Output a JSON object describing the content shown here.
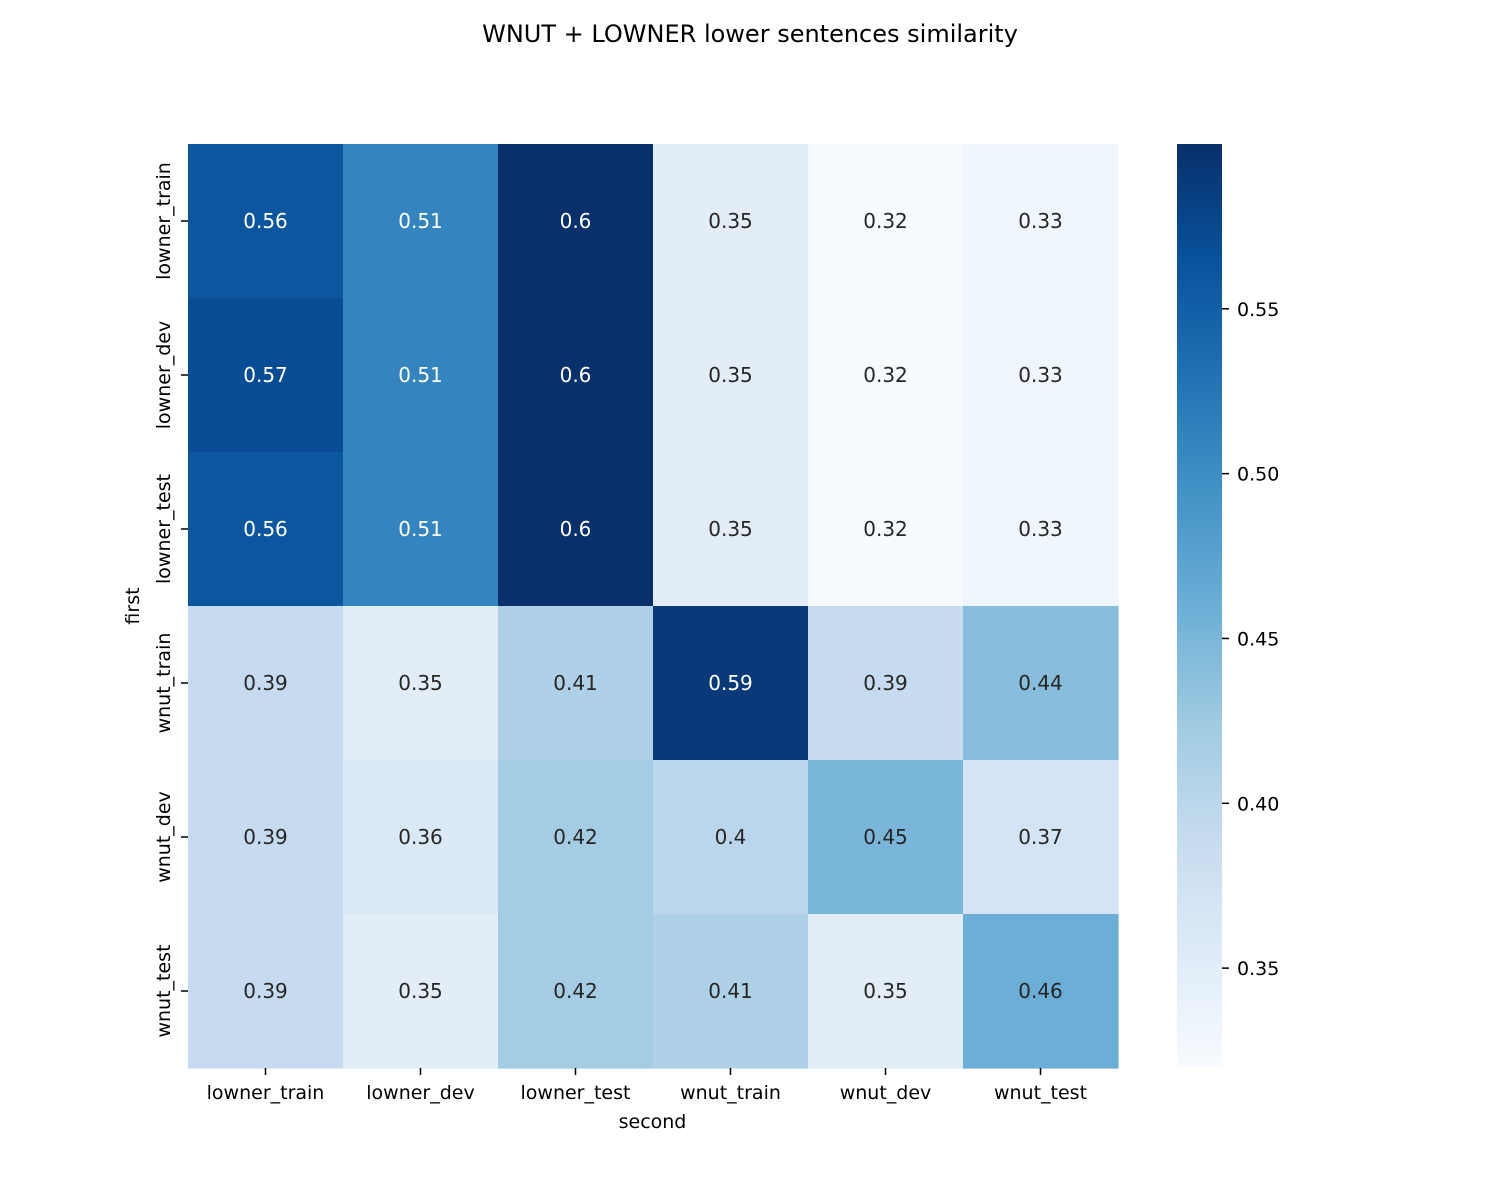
{
  "chart_data": {
    "type": "heatmap",
    "title": "WNUT + LOWNER lower sentences similarity",
    "xlabel": "second",
    "ylabel": "first",
    "x_categories": [
      "lowner_train",
      "lowner_dev",
      "lowner_test",
      "wnut_train",
      "wnut_dev",
      "wnut_test"
    ],
    "y_categories": [
      "lowner_train",
      "lowner_dev",
      "lowner_test",
      "wnut_train",
      "wnut_dev",
      "wnut_test"
    ],
    "values": [
      [
        0.56,
        0.51,
        0.6,
        0.35,
        0.32,
        0.33
      ],
      [
        0.57,
        0.51,
        0.6,
        0.35,
        0.32,
        0.33
      ],
      [
        0.56,
        0.51,
        0.6,
        0.35,
        0.32,
        0.33
      ],
      [
        0.39,
        0.35,
        0.41,
        0.59,
        0.39,
        0.44
      ],
      [
        0.39,
        0.36,
        0.42,
        0.4,
        0.45,
        0.37
      ],
      [
        0.39,
        0.35,
        0.42,
        0.41,
        0.35,
        0.46
      ]
    ],
    "colormap": "Blues",
    "color_range": [
      0.32,
      0.6
    ],
    "colorbar_ticks": [
      "0.35",
      "0.40",
      "0.45",
      "0.50",
      "0.55"
    ],
    "colorbar_tick_values": [
      0.35,
      0.4,
      0.45,
      0.5,
      0.55
    ],
    "grid": false,
    "legend": "colorbar-right"
  }
}
